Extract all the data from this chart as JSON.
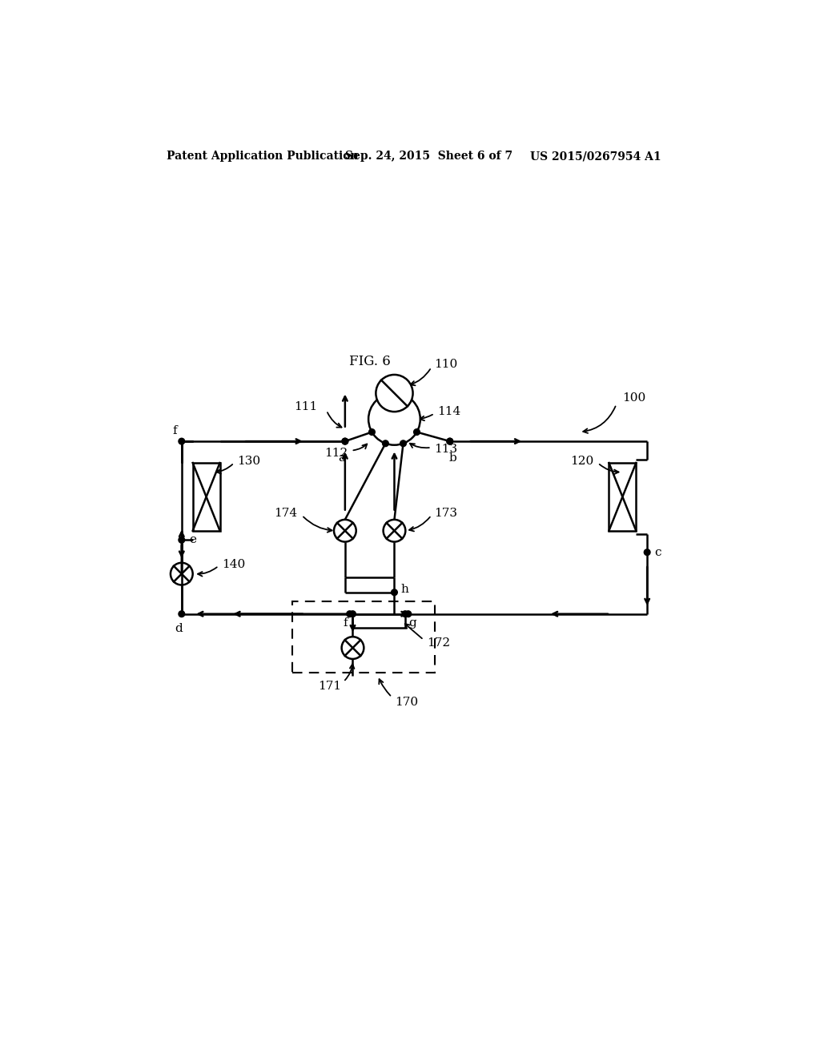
{
  "title_line1": "Patent Application Publication",
  "title_line2": "Sep. 24, 2015  Sheet 6 of 7",
  "title_line3": "US 2015/0267954 A1",
  "fig_label": "FIG. 6",
  "bg_color": "#ffffff",
  "line_color": "#000000",
  "label_100": "100",
  "label_110": "110",
  "label_111": "111",
  "label_112": "112",
  "label_113": "113",
  "label_114": "114",
  "label_120": "120",
  "label_130": "130",
  "label_140": "140",
  "label_170": "170",
  "label_171": "171",
  "label_172": "172",
  "label_173": "173",
  "label_174": "174"
}
